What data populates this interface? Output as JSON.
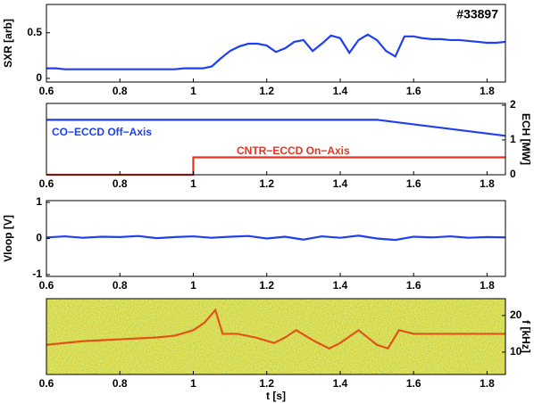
{
  "chart_data": [
    {
      "type": "line",
      "ylabel": "SXR [arb]",
      "annotation": "#33897",
      "x": [
        0.6,
        0.625,
        0.65,
        0.675,
        0.7,
        0.725,
        0.75,
        0.775,
        0.8,
        0.825,
        0.85,
        0.875,
        0.9,
        0.925,
        0.95,
        0.975,
        1,
        1.025,
        1.05,
        1.075,
        1.1,
        1.125,
        1.15,
        1.175,
        1.2,
        1.225,
        1.25,
        1.275,
        1.3,
        1.325,
        1.35,
        1.375,
        1.4,
        1.425,
        1.45,
        1.475,
        1.5,
        1.525,
        1.55,
        1.575,
        1.6,
        1.625,
        1.65,
        1.675,
        1.7,
        1.725,
        1.75,
        1.775,
        1.8,
        1.825,
        1.85
      ],
      "series": [
        {
          "color": "#1f3ff0",
          "values": [
            0.11,
            0.11,
            0.1,
            0.1,
            0.1,
            0.1,
            0.1,
            0.1,
            0.1,
            0.1,
            0.1,
            0.1,
            0.1,
            0.1,
            0.1,
            0.11,
            0.11,
            0.11,
            0.13,
            0.22,
            0.3,
            0.35,
            0.38,
            0.38,
            0.36,
            0.29,
            0.33,
            0.4,
            0.42,
            0.3,
            0.38,
            0.47,
            0.44,
            0.28,
            0.42,
            0.48,
            0.42,
            0.3,
            0.24,
            0.46,
            0.46,
            0.44,
            0.43,
            0.43,
            0.42,
            0.42,
            0.41,
            0.4,
            0.39,
            0.39,
            0.4
          ]
        }
      ],
      "xlim": [
        0.6,
        1.85
      ],
      "xticks": [
        0.6,
        0.8,
        1,
        1.2,
        1.4,
        1.6,
        1.8
      ],
      "ylim": [
        -0.04,
        0.81
      ],
      "yticks": [
        0,
        0.5
      ],
      "yaxis": "left"
    },
    {
      "type": "line",
      "ylabel": "ECH [MW]",
      "series": [
        {
          "name": "CO−ECCD Off−Axis",
          "color": "#1f3ff0",
          "x": [
            0.6,
            1.5,
            1.85
          ],
          "values": [
            1.58,
            1.58,
            1.12
          ]
        },
        {
          "name": "CNTR−ECCD On−Axis",
          "color": "#e8321e",
          "x": [
            0.6,
            1,
            1,
            1.85
          ],
          "values": [
            0,
            0,
            0.5,
            0.5
          ]
        }
      ],
      "xlim": [
        0.6,
        1.85
      ],
      "xticks": [
        0.6,
        0.8,
        1,
        1.2,
        1.4,
        1.6,
        1.8
      ],
      "ylim": [
        0,
        2.05
      ],
      "yticks": [
        0,
        1,
        2
      ],
      "yaxis": "right"
    },
    {
      "type": "line",
      "ylabel": "Vloop [V]",
      "x": [
        0.6,
        0.65,
        0.7,
        0.75,
        0.8,
        0.85,
        0.9,
        0.95,
        1,
        1.05,
        1.1,
        1.15,
        1.2,
        1.25,
        1.3,
        1.35,
        1.4,
        1.45,
        1.5,
        1.55,
        1.6,
        1.65,
        1.7,
        1.75,
        1.8,
        1.85
      ],
      "series": [
        {
          "color": "#1f3ff0",
          "values": [
            0.03,
            0.06,
            0.02,
            0.05,
            0.04,
            0.07,
            0.01,
            0.04,
            0.06,
            0.02,
            0.05,
            0.07,
            0,
            0.05,
            -0.03,
            0.06,
            0.02,
            0.08,
            0,
            -0.04,
            0.05,
            0.03,
            0.06,
            0.02,
            0.04,
            0.03
          ]
        }
      ],
      "xlim": [
        0.6,
        1.85
      ],
      "xticks": [
        0.6,
        0.8,
        1,
        1.2,
        1.4,
        1.6,
        1.8
      ],
      "ylim": [
        -1.05,
        1.05
      ],
      "yticks": [
        -1,
        0,
        1
      ],
      "yaxis": "left"
    },
    {
      "type": "line",
      "ylabel": "f [kHz]",
      "xlabel": "t [s]",
      "x": [
        0.6,
        0.7,
        0.8,
        0.9,
        0.95,
        1,
        1.03,
        1.06,
        1.08,
        1.12,
        1.17,
        1.22,
        1.25,
        1.28,
        1.33,
        1.37,
        1.4,
        1.45,
        1.5,
        1.53,
        1.56,
        1.6,
        1.7,
        1.85
      ],
      "series": [
        {
          "color": "#e0541a",
          "values": [
            12,
            13,
            13.5,
            14,
            14.5,
            16,
            18,
            21.5,
            15,
            15,
            14,
            12.5,
            14,
            16,
            13,
            11,
            12.5,
            16,
            12,
            11,
            16,
            15,
            15,
            15
          ]
        }
      ],
      "xlim": [
        0.6,
        1.85
      ],
      "xticks": [
        0.6,
        0.8,
        1,
        1.2,
        1.4,
        1.6,
        1.8
      ],
      "ylim": [
        3.9,
        24.6
      ],
      "yticks": [
        10,
        20
      ],
      "yaxis": "right"
    }
  ]
}
